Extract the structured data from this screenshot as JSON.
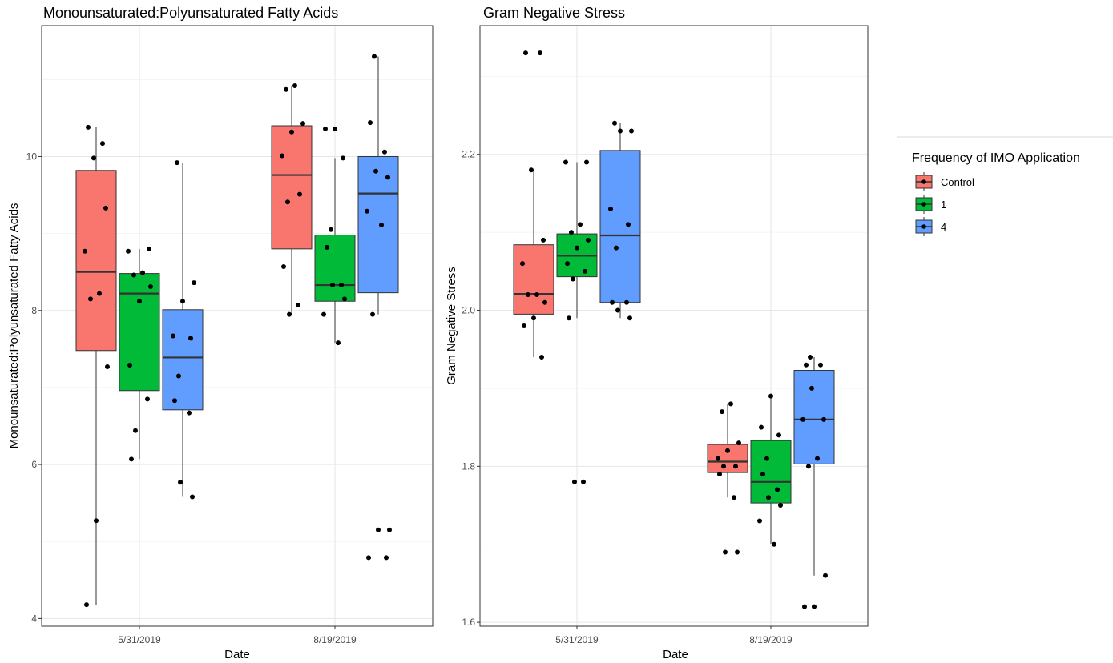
{
  "chart_data": [
    {
      "type": "box",
      "title": "Monounsaturated:Polyunsaturated Fatty Acids",
      "xlabel": "Date",
      "ylabel": "Monounsaturated:Polyunsaturated Fatty Acids",
      "categories": [
        "5/31/2019",
        "8/19/2019"
      ],
      "ylim": [
        3.9,
        11.7
      ],
      "yticks": [
        4,
        6,
        8,
        10
      ],
      "grid": true,
      "series": [
        {
          "name": "Control",
          "boxes": [
            {
              "q1": 7.48,
              "median": 8.5,
              "q3": 9.82,
              "whisker_low": 4.18,
              "whisker_high": 10.38,
              "points": [
                10.38,
                10.17,
                9.98,
                9.33,
                8.77,
                8.22,
                8.15,
                7.27,
                5.27,
                4.18
              ]
            },
            {
              "q1": 8.8,
              "median": 9.76,
              "q3": 10.4,
              "whisker_low": 7.95,
              "whisker_high": 10.92,
              "points": [
                10.92,
                10.87,
                10.43,
                10.32,
                10.01,
                9.51,
                9.41,
                8.57,
                8.07,
                7.95
              ]
            }
          ]
        },
        {
          "name": "1",
          "boxes": [
            {
              "q1": 6.96,
              "median": 8.22,
              "q3": 8.48,
              "whisker_low": 6.07,
              "whisker_high": 8.8,
              "points": [
                8.8,
                8.77,
                8.49,
                8.46,
                8.31,
                8.12,
                7.29,
                6.85,
                6.44,
                6.07
              ]
            },
            {
              "q1": 8.12,
              "median": 8.33,
              "q3": 8.98,
              "whisker_low": 7.58,
              "whisker_high": 9.98,
              "points": [
                10.36,
                10.36,
                9.98,
                9.05,
                8.82,
                8.33,
                8.33,
                8.15,
                7.95,
                7.58
              ]
            }
          ]
        },
        {
          "name": "4",
          "boxes": [
            {
              "q1": 6.71,
              "median": 7.39,
              "q3": 8.01,
              "whisker_low": 5.58,
              "whisker_high": 9.92,
              "points": [
                9.92,
                8.36,
                8.12,
                7.67,
                7.64,
                7.15,
                6.83,
                6.67,
                5.77,
                5.58
              ]
            },
            {
              "q1": 8.23,
              "median": 9.52,
              "q3": 10.0,
              "whisker_low": 7.95,
              "whisker_high": 11.3,
              "points": [
                11.3,
                10.44,
                10.06,
                9.81,
                9.73,
                9.29,
                9.11,
                7.95,
                5.15,
                5.15,
                4.79,
                4.79
              ]
            }
          ]
        }
      ]
    },
    {
      "type": "box",
      "title": "Gram Negative Stress",
      "xlabel": "Date",
      "ylabel": "Gram Negative Stress",
      "categories": [
        "5/31/2019",
        "8/19/2019"
      ],
      "ylim": [
        1.595,
        2.365
      ],
      "yticks": [
        1.6,
        1.8,
        2.0,
        2.2
      ],
      "grid": true,
      "series": [
        {
          "name": "Control",
          "boxes": [
            {
              "q1": 1.995,
              "median": 2.021,
              "q3": 2.084,
              "whisker_low": 1.94,
              "whisker_high": 2.18,
              "points": [
                2.33,
                2.33,
                2.18,
                2.09,
                2.06,
                2.02,
                2.02,
                2.01,
                1.99,
                1.98,
                1.94
              ]
            },
            {
              "q1": 1.792,
              "median": 1.806,
              "q3": 1.828,
              "whisker_low": 1.76,
              "whisker_high": 1.88,
              "points": [
                1.88,
                1.87,
                1.83,
                1.82,
                1.81,
                1.8,
                1.8,
                1.79,
                1.76,
                1.69,
                1.69
              ]
            }
          ]
        },
        {
          "name": "1",
          "boxes": [
            {
              "q1": 2.043,
              "median": 2.07,
              "q3": 2.098,
              "whisker_low": 1.99,
              "whisker_high": 2.19,
              "points": [
                2.19,
                2.19,
                2.11,
                2.1,
                2.09,
                2.08,
                2.06,
                2.05,
                2.04,
                1.99,
                1.78,
                1.78
              ]
            },
            {
              "q1": 1.753,
              "median": 1.78,
              "q3": 1.833,
              "whisker_low": 1.7,
              "whisker_high": 1.89,
              "points": [
                1.89,
                1.85,
                1.84,
                1.81,
                1.79,
                1.77,
                1.76,
                1.75,
                1.73,
                1.7
              ]
            }
          ]
        },
        {
          "name": "4",
          "boxes": [
            {
              "q1": 2.01,
              "median": 2.096,
              "q3": 2.205,
              "whisker_low": 1.99,
              "whisker_high": 2.24,
              "points": [
                2.24,
                2.23,
                2.23,
                2.13,
                2.11,
                2.08,
                2.01,
                2.01,
                2.0,
                1.99
              ]
            },
            {
              "q1": 1.803,
              "median": 1.86,
              "q3": 1.923,
              "whisker_low": 1.66,
              "whisker_high": 1.94,
              "points": [
                1.94,
                1.93,
                1.93,
                1.9,
                1.86,
                1.86,
                1.81,
                1.8,
                1.66,
                1.62,
                1.62
              ]
            }
          ]
        }
      ]
    }
  ],
  "legend": {
    "title": "Frequency of IMO Application",
    "position": "right",
    "items": [
      {
        "label": "Control",
        "color": "#F8766D"
      },
      {
        "label": "1",
        "color": "#00BA38"
      },
      {
        "label": "4",
        "color": "#619CFF"
      }
    ]
  },
  "colors": {
    "Control": "#F8766D",
    "1": "#00BA38",
    "4": "#619CFF",
    "grid": "#ebebeb",
    "panel_border": "#333333",
    "points": "#000000"
  }
}
